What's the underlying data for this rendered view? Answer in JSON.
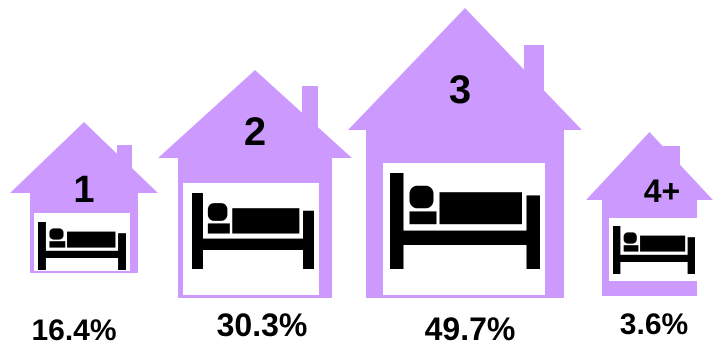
{
  "chart_data": {
    "type": "bar",
    "categories": [
      "1",
      "2",
      "3",
      "4+"
    ],
    "values": [
      16.4,
      30.3,
      49.7,
      3.6
    ],
    "value_labels": [
      "16.4%",
      "30.3%",
      "49.7%",
      "3.6%"
    ],
    "title": "",
    "xlabel": "",
    "ylabel": "",
    "mark": "house-with-bed-icon",
    "colors": {
      "house": "#cc99ff",
      "window": "#ffffff",
      "icon": "#000000",
      "text": "#000000"
    }
  }
}
